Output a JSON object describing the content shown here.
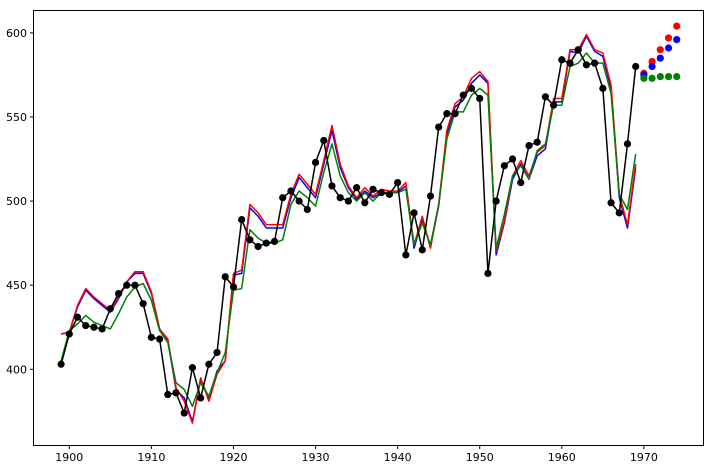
{
  "chart_data": {
    "type": "line",
    "title": "",
    "xlabel": "",
    "ylabel": "",
    "xlim": [
      1895.7,
      1977.2
    ],
    "ylim": [
      355,
      613
    ],
    "xticks": [
      1900,
      1910,
      1920,
      1930,
      1940,
      1950,
      1960,
      1970
    ],
    "yticks": [
      400,
      450,
      500,
      550,
      600
    ],
    "grid": false,
    "legend": "none",
    "series": [
      {
        "name": "",
        "kind": "observed",
        "color": "#000000",
        "marker": true,
        "x": [
          1899,
          1900,
          1901,
          1902,
          1903,
          1904,
          1905,
          1906,
          1907,
          1908,
          1909,
          1910,
          1911,
          1912,
          1913,
          1914,
          1915,
          1916,
          1917,
          1918,
          1919,
          1920,
          1921,
          1922,
          1923,
          1924,
          1925,
          1926,
          1927,
          1928,
          1929,
          1930,
          1931,
          1932,
          1933,
          1934,
          1935,
          1936,
          1937,
          1938,
          1939,
          1940,
          1941,
          1942,
          1943,
          1944,
          1945,
          1946,
          1947,
          1948,
          1949,
          1950,
          1951,
          1952,
          1953,
          1954,
          1955,
          1956,
          1957,
          1958,
          1959,
          1960,
          1961,
          1962,
          1963,
          1964,
          1965,
          1966,
          1967,
          1968,
          1969
        ],
        "values": [
          403,
          421,
          431,
          426,
          425,
          424,
          436,
          445,
          450,
          450,
          439,
          419,
          418,
          385,
          386,
          374,
          401,
          383,
          403,
          410,
          455,
          449,
          489,
          477,
          473,
          475,
          476,
          502,
          506,
          500,
          495,
          523,
          536,
          509,
          502,
          500,
          508,
          499,
          507,
          505,
          504,
          511,
          468,
          493,
          471,
          503,
          544,
          552,
          552,
          563,
          567,
          561,
          457,
          500,
          521,
          525,
          511,
          533,
          535,
          562,
          557,
          584,
          582,
          590,
          581,
          582,
          567,
          499,
          493,
          534,
          580
        ]
      },
      {
        "name": "",
        "kind": "fit",
        "color": "#0000ff",
        "marker": false,
        "x": [
          1899,
          1900,
          1901,
          1902,
          1903,
          1904,
          1905,
          1906,
          1907,
          1908,
          1909,
          1910,
          1911,
          1912,
          1913,
          1914,
          1915,
          1916,
          1917,
          1918,
          1919,
          1920,
          1921,
          1922,
          1923,
          1924,
          1925,
          1926,
          1927,
          1928,
          1929,
          1930,
          1931,
          1932,
          1933,
          1934,
          1935,
          1936,
          1937,
          1938,
          1939,
          1940,
          1941,
          1942,
          1943,
          1944,
          1945,
          1946,
          1947,
          1948,
          1949,
          1950,
          1951,
          1952,
          1953,
          1954,
          1955,
          1956,
          1957,
          1958,
          1959,
          1960,
          1961,
          1962,
          1963,
          1964,
          1965,
          1966,
          1967,
          1968,
          1969
        ],
        "values": [
          421,
          422,
          437,
          447,
          442,
          438,
          434,
          442,
          452,
          457,
          457,
          445,
          424,
          417,
          388,
          383,
          369,
          394,
          383,
          399,
          405,
          456,
          457,
          496,
          491,
          484,
          484,
          484,
          502,
          514,
          508,
          502,
          522,
          542,
          520,
          508,
          501,
          506,
          502,
          505,
          505,
          505,
          509,
          472,
          489,
          473,
          497,
          540,
          556,
          560,
          570,
          575,
          570,
          468,
          487,
          513,
          522,
          513,
          527,
          531,
          559,
          559,
          589,
          588,
          598,
          589,
          586,
          567,
          502,
          484,
          520
        ]
      },
      {
        "name": "",
        "kind": "fit",
        "color": "#ff0000",
        "marker": false,
        "x": [
          1899,
          1900,
          1901,
          1902,
          1903,
          1904,
          1905,
          1906,
          1907,
          1908,
          1909,
          1910,
          1911,
          1912,
          1913,
          1914,
          1915,
          1916,
          1917,
          1918,
          1919,
          1920,
          1921,
          1922,
          1923,
          1924,
          1925,
          1926,
          1927,
          1928,
          1929,
          1930,
          1931,
          1932,
          1933,
          1934,
          1935,
          1936,
          1937,
          1938,
          1939,
          1940,
          1941,
          1942,
          1943,
          1944,
          1945,
          1946,
          1947,
          1948,
          1949,
          1950,
          1951,
          1952,
          1953,
          1954,
          1955,
          1956,
          1957,
          1958,
          1959,
          1960,
          1961,
          1962,
          1963,
          1964,
          1965,
          1966,
          1967,
          1968,
          1969
        ],
        "values": [
          421,
          422,
          438,
          448,
          443,
          439,
          435,
          443,
          452,
          458,
          458,
          446,
          424,
          418,
          389,
          381,
          368,
          395,
          381,
          397,
          405,
          457,
          459,
          498,
          493,
          486,
          486,
          486,
          504,
          516,
          510,
          504,
          524,
          545,
          522,
          509,
          502,
          508,
          503,
          507,
          506,
          506,
          511,
          474,
          491,
          472,
          498,
          542,
          558,
          562,
          573,
          577,
          571,
          470,
          488,
          515,
          524,
          515,
          529,
          533,
          561,
          561,
          590,
          590,
          599,
          590,
          588,
          569,
          504,
          486,
          522
        ]
      },
      {
        "name": "",
        "kind": "fit",
        "color": "#008000",
        "marker": false,
        "x": [
          1899,
          1900,
          1901,
          1902,
          1903,
          1904,
          1905,
          1906,
          1907,
          1908,
          1909,
          1910,
          1911,
          1912,
          1913,
          1914,
          1915,
          1916,
          1917,
          1918,
          1919,
          1920,
          1921,
          1922,
          1923,
          1924,
          1925,
          1926,
          1927,
          1928,
          1929,
          1930,
          1931,
          1932,
          1933,
          1934,
          1935,
          1936,
          1937,
          1938,
          1939,
          1940,
          1941,
          1942,
          1943,
          1944,
          1945,
          1946,
          1947,
          1948,
          1949,
          1950,
          1951,
          1952,
          1953,
          1954,
          1955,
          1956,
          1957,
          1958,
          1959,
          1960,
          1961,
          1962,
          1963,
          1964,
          1965,
          1966,
          1967,
          1968,
          1969
        ],
        "values": [
          405,
          423,
          427,
          432,
          428,
          426,
          424,
          433,
          443,
          449,
          451,
          441,
          423,
          416,
          392,
          388,
          378,
          392,
          384,
          398,
          410,
          447,
          448,
          483,
          478,
          475,
          475,
          477,
          498,
          506,
          502,
          497,
          517,
          534,
          515,
          505,
          500,
          505,
          500,
          505,
          505,
          505,
          507,
          474,
          487,
          474,
          498,
          537,
          553,
          553,
          563,
          567,
          563,
          472,
          492,
          515,
          521,
          513,
          530,
          534,
          557,
          557,
          580,
          582,
          588,
          582,
          582,
          564,
          504,
          495,
          528
        ]
      },
      {
        "name": "",
        "kind": "forecast",
        "color": "#ff0000",
        "marker": true,
        "x": [
          1970,
          1971,
          1972,
          1973,
          1974
        ],
        "values": [
          576,
          583,
          590,
          597,
          604
        ]
      },
      {
        "name": "",
        "kind": "forecast",
        "color": "#0000ff",
        "marker": true,
        "x": [
          1970,
          1971,
          1972,
          1973,
          1974
        ],
        "values": [
          575,
          580,
          585,
          591,
          596
        ]
      },
      {
        "name": "",
        "kind": "forecast",
        "color": "#008000",
        "marker": true,
        "x": [
          1970,
          1971,
          1972,
          1973,
          1974
        ],
        "values": [
          573,
          573,
          574,
          574,
          574
        ]
      }
    ]
  }
}
